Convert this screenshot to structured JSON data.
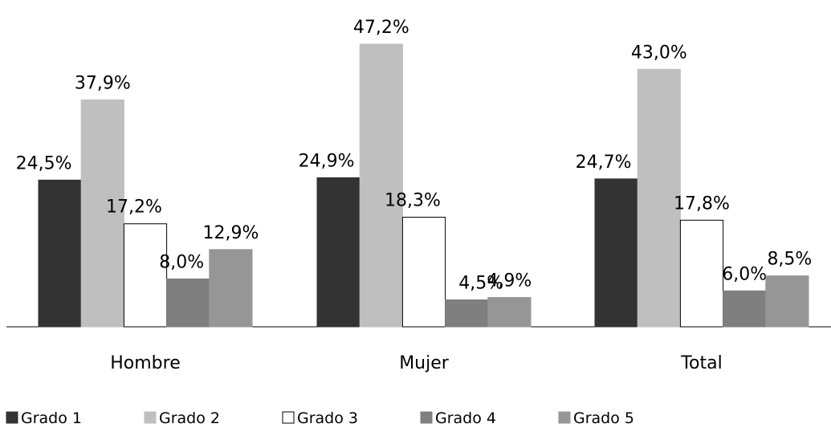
{
  "chart_data": {
    "type": "bar",
    "title": "",
    "xlabel": "",
    "ylabel": "",
    "categories": [
      "Hombre",
      "Mujer",
      "Total"
    ],
    "series": [
      {
        "name": "Grado 1",
        "values": [
          24.5,
          24.9,
          24.7
        ],
        "labels": [
          "24,5%",
          "24,9%",
          "24,7%"
        ],
        "color": "#333333",
        "stroke": "#333333"
      },
      {
        "name": "Grado 2",
        "values": [
          37.9,
          47.2,
          43.0
        ],
        "labels": [
          "37,9%",
          "47,2%",
          "43,0%"
        ],
        "color": "#bfbfbf",
        "stroke": "#bfbfbf"
      },
      {
        "name": "Grado 3",
        "values": [
          17.2,
          18.3,
          17.8
        ],
        "labels": [
          "17,2%",
          "18,3%",
          "17,8%"
        ],
        "color": "#ffffff",
        "stroke": "#000000"
      },
      {
        "name": "Grado 4",
        "values": [
          8.0,
          4.5,
          6.0
        ],
        "labels": [
          "8,0%",
          "4,5%",
          "6,0%"
        ],
        "color": "#7f7f7f",
        "stroke": "#7f7f7f"
      },
      {
        "name": "Grado 5",
        "values": [
          12.9,
          4.9,
          8.5
        ],
        "labels": [
          "12,9%",
          "4,9%",
          "8,5%"
        ],
        "color": "#969696",
        "stroke": "#969696"
      }
    ],
    "ylim": [
      0,
      47.2
    ],
    "grid": false,
    "legend_position": "bottom-left"
  }
}
